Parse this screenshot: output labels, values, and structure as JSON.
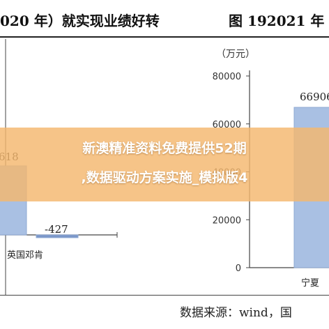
{
  "header": {
    "left_title": "020 年）就实现业绩好转",
    "right_title": "图 192021 年"
  },
  "banner": {
    "line1": "新澳精准资料免费提供52期",
    "line2": ",数据驱动方案实施_模拟版4"
  },
  "source": "数据来源：wind，国",
  "colors": {
    "bar": "#a9c0e3",
    "bar_edge": "#8ea9d3",
    "axis": "#444444",
    "banner": "#f4b76e"
  },
  "chart_data": [
    {
      "type": "bar",
      "categories": [
        "",
        "英国邓肯"
      ],
      "values": [
        null,
        -427
      ],
      "data_labels": [
        "618",
        "-427"
      ]
    },
    {
      "type": "bar",
      "unit_label": "（万元）",
      "yticks": [
        "0",
        "20000",
        "40000",
        "60000",
        "80000"
      ],
      "ylim": [
        0,
        80000
      ],
      "categories": [
        "宁夏"
      ],
      "values": [
        66906
      ],
      "data_labels": [
        "66906"
      ]
    }
  ]
}
